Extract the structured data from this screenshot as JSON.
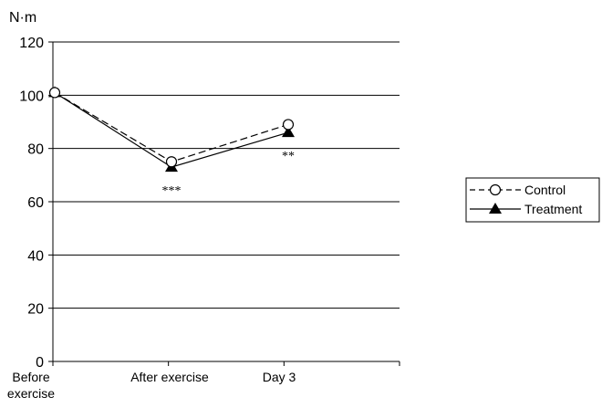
{
  "chart_data": {
    "type": "line",
    "title": "",
    "ylabel": "N·m",
    "xlabel": "",
    "categories": [
      "Before exercise",
      "After exercise",
      "Day 3"
    ],
    "category_lines": [
      [
        "Before",
        "exercise"
      ],
      [
        "After exercise"
      ],
      [
        "Day 3"
      ]
    ],
    "ylim": [
      0,
      120
    ],
    "yticks": [
      0,
      20,
      40,
      60,
      80,
      100,
      120
    ],
    "grid": true,
    "legend_position": "right",
    "series": [
      {
        "name": "Control",
        "values": [
          101,
          75,
          89
        ],
        "line_style": "dashed",
        "marker": "open-circle",
        "color": "#000000"
      },
      {
        "name": "Treatment",
        "values": [
          101,
          73,
          86
        ],
        "line_style": "solid",
        "marker": "filled-triangle",
        "color": "#000000"
      }
    ],
    "annotations": [
      {
        "text": "***",
        "category": "After exercise"
      },
      {
        "text": "**",
        "category": "Day 3"
      }
    ]
  }
}
